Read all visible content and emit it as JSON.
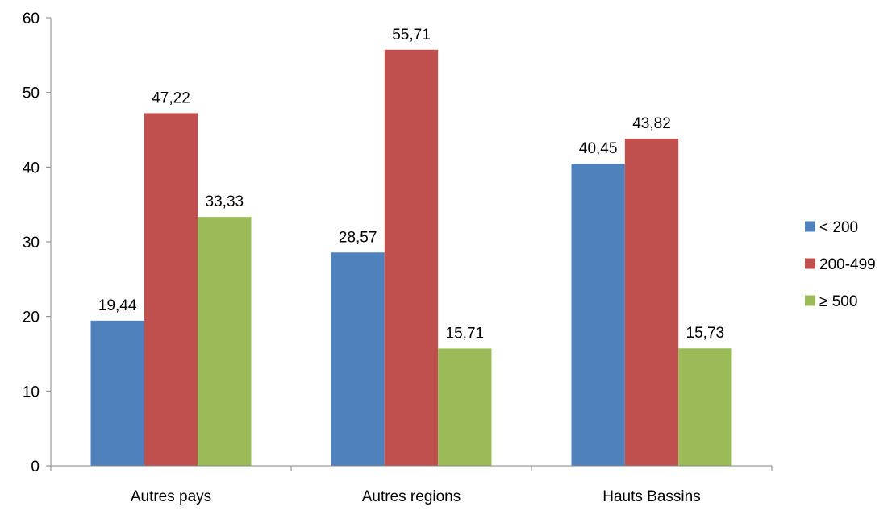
{
  "chart_data": {
    "type": "bar",
    "title": "",
    "xlabel": "",
    "ylabel": "",
    "categories": [
      "Autres pays",
      "Autres regions",
      "Hauts Bassins"
    ],
    "series": [
      {
        "name": "< 200",
        "color": "#4F81BD",
        "values": [
          19.44,
          28.57,
          40.45
        ],
        "labels": [
          "19,44",
          "28,57",
          "40,45"
        ]
      },
      {
        "name": "200-499",
        "color": "#C0504D",
        "values": [
          47.22,
          55.71,
          43.82
        ],
        "labels": [
          "47,22",
          "55,71",
          "43,82"
        ]
      },
      {
        "name": "≥ 500",
        "color": "#9BBB59",
        "values": [
          33.33,
          15.71,
          15.73
        ],
        "labels": [
          "33,33",
          "15,71",
          "15,73"
        ]
      }
    ],
    "ylim": [
      0,
      60
    ],
    "yticks": [
      0,
      10,
      20,
      30,
      40,
      50,
      60
    ],
    "grid": false,
    "legend_position": "right",
    "data_labels": true
  }
}
